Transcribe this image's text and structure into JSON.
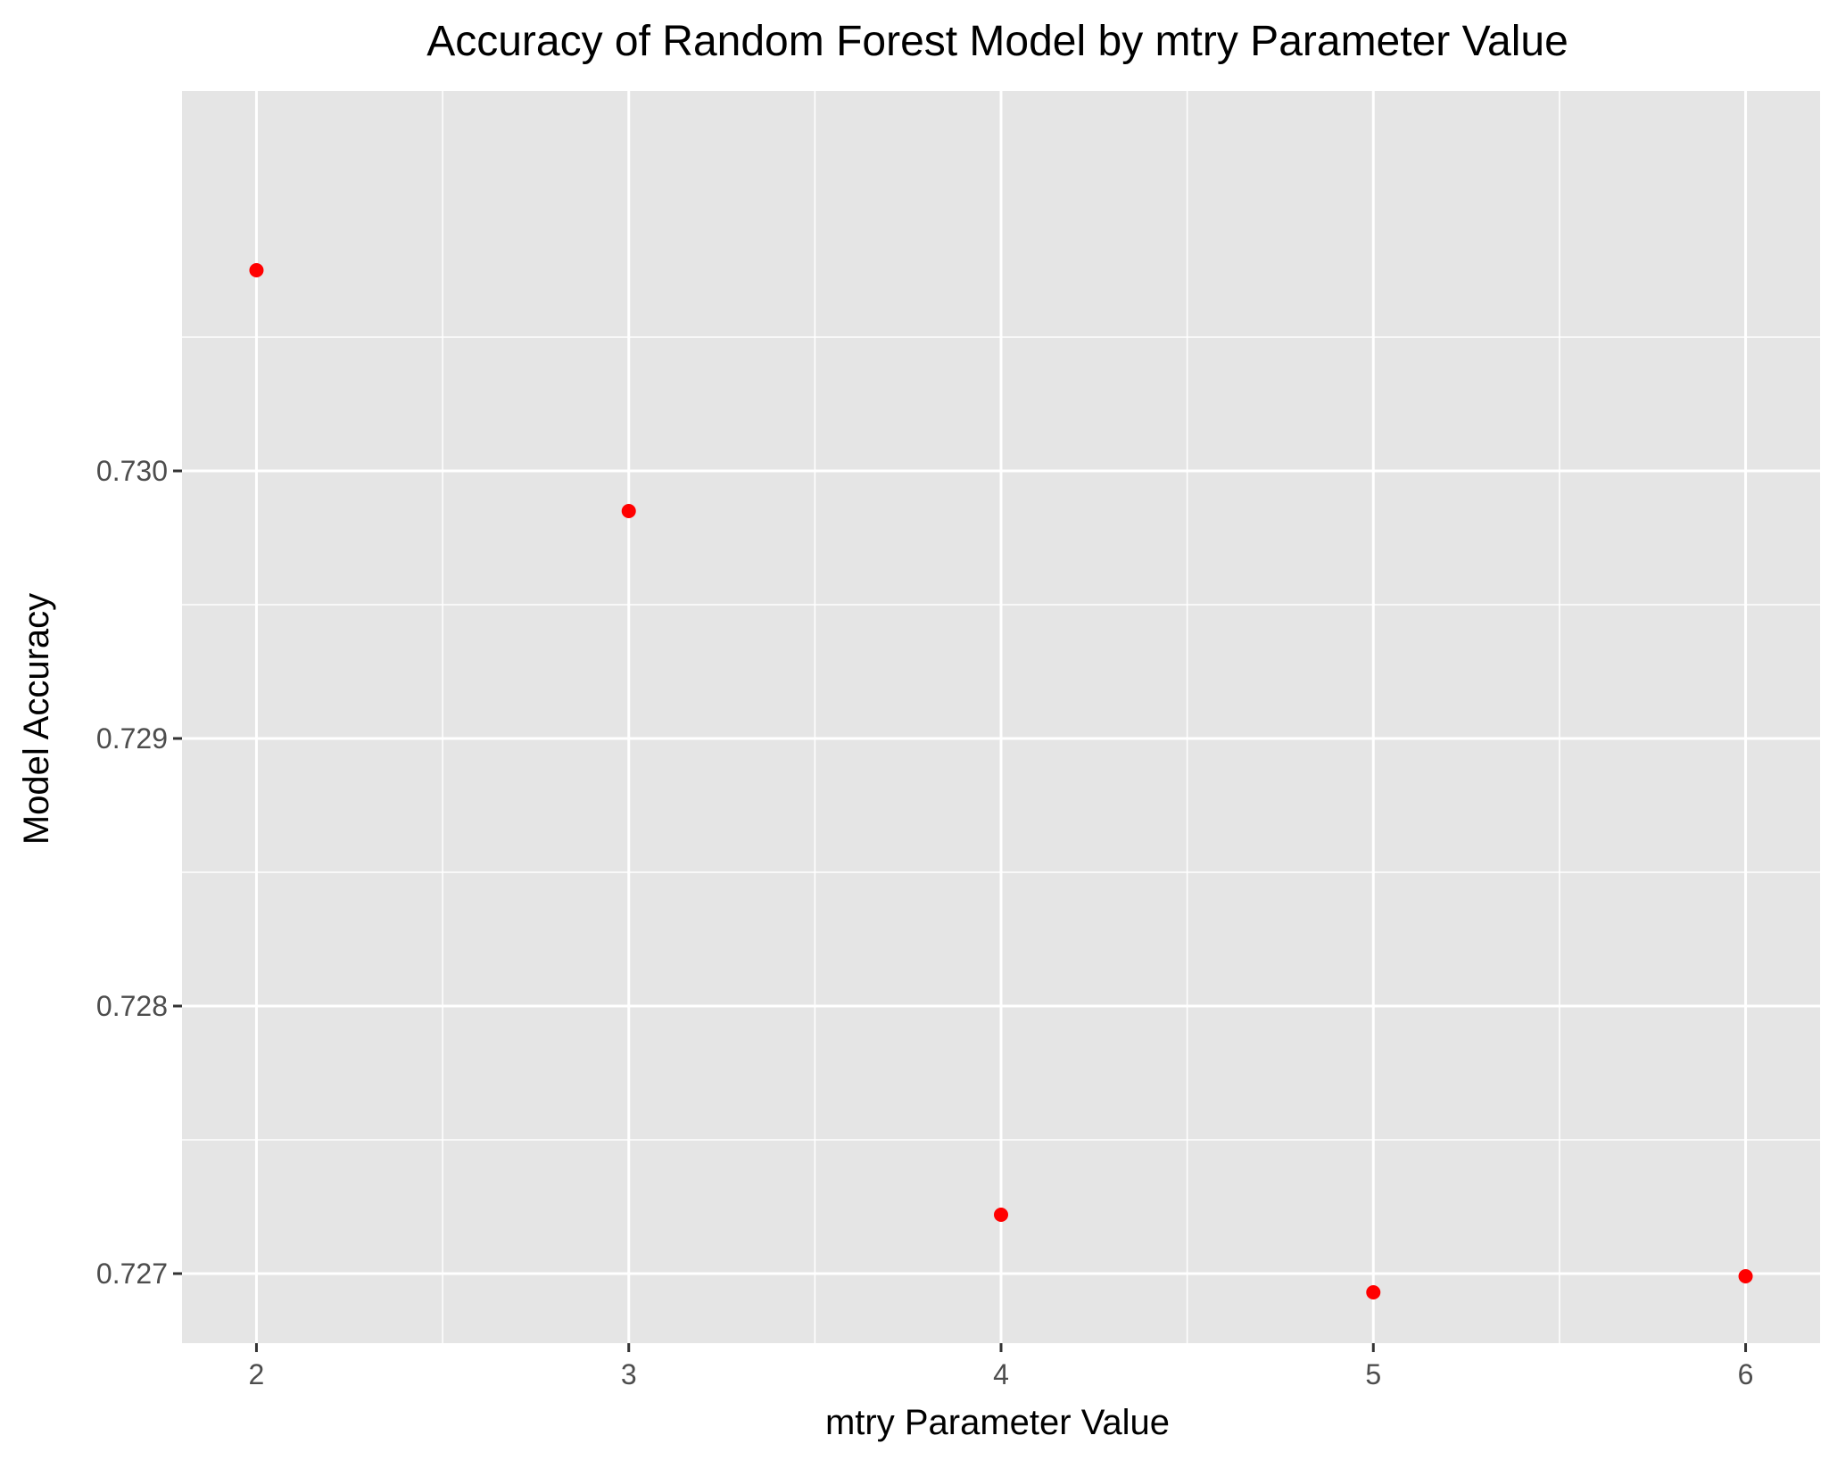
{
  "chart_data": {
    "type": "scatter",
    "title": "Accuracy of Random Forest Model by mtry Parameter Value",
    "xlabel": "mtry Parameter Value",
    "ylabel": "Model Accuracy",
    "x": [
      2,
      3,
      4,
      5,
      6
    ],
    "y": [
      0.73075,
      0.72985,
      0.72722,
      0.72693,
      0.72699
    ],
    "xlim": [
      1.8,
      6.2
    ],
    "ylim": [
      0.72674,
      0.73142
    ],
    "x_ticks": [
      "2",
      "3",
      "4",
      "5",
      "6"
    ],
    "y_ticks": [
      "0.727",
      "0.728",
      "0.729",
      "0.730"
    ],
    "point_color": "#ff0000",
    "panel_background": "#e5e5e5",
    "grid_color": "#ffffff",
    "grid": true,
    "legend": "none"
  }
}
